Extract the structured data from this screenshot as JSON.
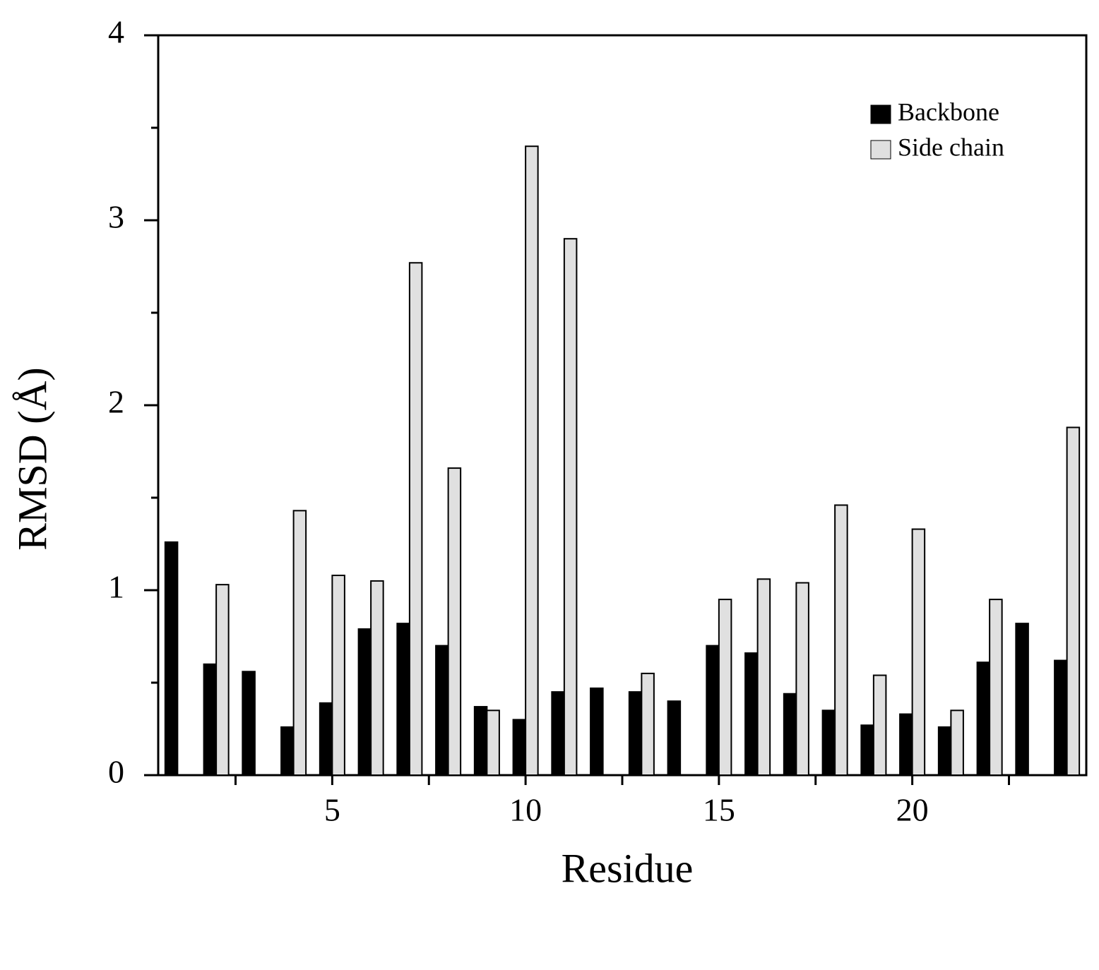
{
  "chart_data": {
    "type": "bar",
    "x_label": "Residue",
    "y_label": "RMSD (Å)",
    "x": [
      1,
      2,
      3,
      4,
      5,
      6,
      7,
      8,
      9,
      10,
      11,
      12,
      13,
      14,
      15,
      16,
      17,
      18,
      19,
      20,
      21,
      22,
      23,
      24
    ],
    "series": [
      {
        "name": "Backbone",
        "color": "#000000",
        "values": [
          1.26,
          0.6,
          0.56,
          0.26,
          0.39,
          0.79,
          0.82,
          0.7,
          0.37,
          0.3,
          0.45,
          0.47,
          0.45,
          0.4,
          0.7,
          0.66,
          0.44,
          0.35,
          0.27,
          0.33,
          0.26,
          0.61,
          0.82,
          0.62
        ]
      },
      {
        "name": "Side chain",
        "color": "#e0e0e0",
        "values": [
          null,
          1.03,
          null,
          1.43,
          1.08,
          1.05,
          2.77,
          1.66,
          0.35,
          3.4,
          2.9,
          null,
          0.55,
          null,
          0.95,
          1.06,
          1.04,
          1.46,
          0.54,
          1.33,
          0.35,
          0.95,
          null,
          1.88
        ]
      }
    ],
    "xlim": [
      0.5,
      24.5
    ],
    "xticks": [
      5,
      10,
      15,
      20
    ],
    "xminorticks": [
      2.5,
      7.5,
      12.5,
      17.5,
      22.5
    ],
    "ylim": [
      0,
      4
    ],
    "yticks": [
      0,
      1,
      2,
      3,
      4
    ],
    "yminorticks": [
      0.5,
      1.5,
      2.5,
      3.5
    ],
    "legend": "upper right"
  }
}
